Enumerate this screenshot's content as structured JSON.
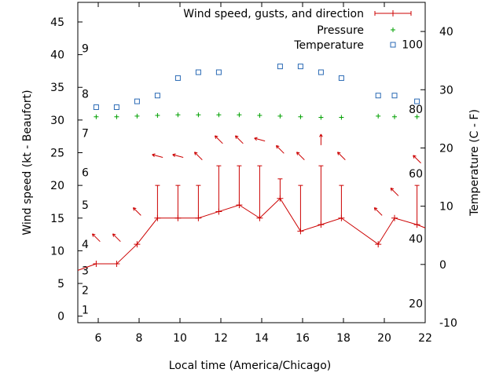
{
  "chart_data": {
    "type": "line",
    "title": "",
    "xlabel": "Local time (America/Chicago)",
    "ylabel_left": "Wind speed (kt - Beaufort)",
    "ylabel_right": "Temperature (C - F)",
    "xlim": [
      5,
      22
    ],
    "ylim_left": [
      -1,
      48
    ],
    "ylim_right": [
      -10,
      45
    ],
    "x_ticks": [
      6,
      8,
      10,
      12,
      14,
      16,
      18,
      20,
      22
    ],
    "y_ticks_left": [
      0,
      5,
      10,
      15,
      20,
      25,
      30,
      35,
      40,
      45
    ],
    "y_ticks_right": [
      -10,
      0,
      10,
      20,
      30,
      40
    ],
    "beaufort_labels": [
      {
        "label": "1",
        "kt": 1
      },
      {
        "label": "2",
        "kt": 4
      },
      {
        "label": "3",
        "kt": 7
      },
      {
        "label": "4",
        "kt": 11
      },
      {
        "label": "5",
        "kt": 17
      },
      {
        "label": "6",
        "kt": 22
      },
      {
        "label": "7",
        "kt": 28
      },
      {
        "label": "8",
        "kt": 34
      },
      {
        "label": "9",
        "kt": 41
      }
    ],
    "fahrenheit_labels": [
      {
        "label": "20",
        "c": -6.7
      },
      {
        "label": "40",
        "c": 4.4
      },
      {
        "label": "60",
        "c": 15.6
      },
      {
        "label": "80",
        "c": 26.7
      },
      {
        "label": "100",
        "c": 37.8
      }
    ],
    "legend_position": "top-right",
    "series": [
      {
        "name": "Wind speed, gusts, and direction",
        "color": "#cc0000",
        "x": [
          5.0,
          5.9,
          6.9,
          7.9,
          8.9,
          9.9,
          10.9,
          11.9,
          12.9,
          13.9,
          14.9,
          15.9,
          16.9,
          17.9,
          19.7,
          20.5,
          21.6,
          22.0
        ],
        "wind": [
          7,
          8,
          8,
          11,
          15,
          15,
          15,
          16,
          17,
          15,
          18,
          13,
          14,
          15,
          11,
          15,
          14,
          13.5
        ],
        "gust": [
          null,
          null,
          null,
          null,
          20,
          20,
          20,
          23,
          23,
          23,
          21,
          20,
          23,
          20,
          null,
          null,
          20,
          null
        ],
        "arrow_x": [
          5.9,
          6.9,
          7.9,
          8.9,
          9.9,
          10.9,
          11.9,
          12.9,
          13.9,
          14.9,
          15.9,
          16.9,
          17.9,
          19.7,
          20.5,
          21.6
        ],
        "arrow_kt": [
          12,
          12,
          16,
          24.5,
          24.5,
          24.5,
          27,
          27,
          27,
          25.5,
          24.5,
          27,
          24.5,
          16,
          19,
          24
        ],
        "arrow_dir": [
          135,
          135,
          135,
          165,
          165,
          135,
          135,
          135,
          165,
          135,
          135,
          90,
          135,
          135,
          135,
          135
        ]
      },
      {
        "name": "Pressure",
        "color": "#00a000",
        "x": [
          5.9,
          6.9,
          7.9,
          8.9,
          9.9,
          10.9,
          11.9,
          12.9,
          13.9,
          14.9,
          15.9,
          16.9,
          17.9,
          19.7,
          20.5,
          21.6
        ],
        "values": [
          30.5,
          30.5,
          30.6,
          30.7,
          30.8,
          30.8,
          30.8,
          30.8,
          30.7,
          30.6,
          30.5,
          30.4,
          30.4,
          30.6,
          30.5,
          30.5
        ]
      },
      {
        "name": "Temperature",
        "color": "#2a6ab4",
        "x": [
          5.9,
          6.9,
          7.9,
          8.9,
          9.9,
          10.9,
          11.9,
          14.9,
          15.9,
          16.9,
          17.9,
          19.7,
          20.5,
          21.6
        ],
        "values": [
          27,
          27,
          28,
          29,
          32,
          33,
          33,
          34,
          34,
          33,
          32,
          29,
          29,
          28
        ]
      }
    ]
  }
}
